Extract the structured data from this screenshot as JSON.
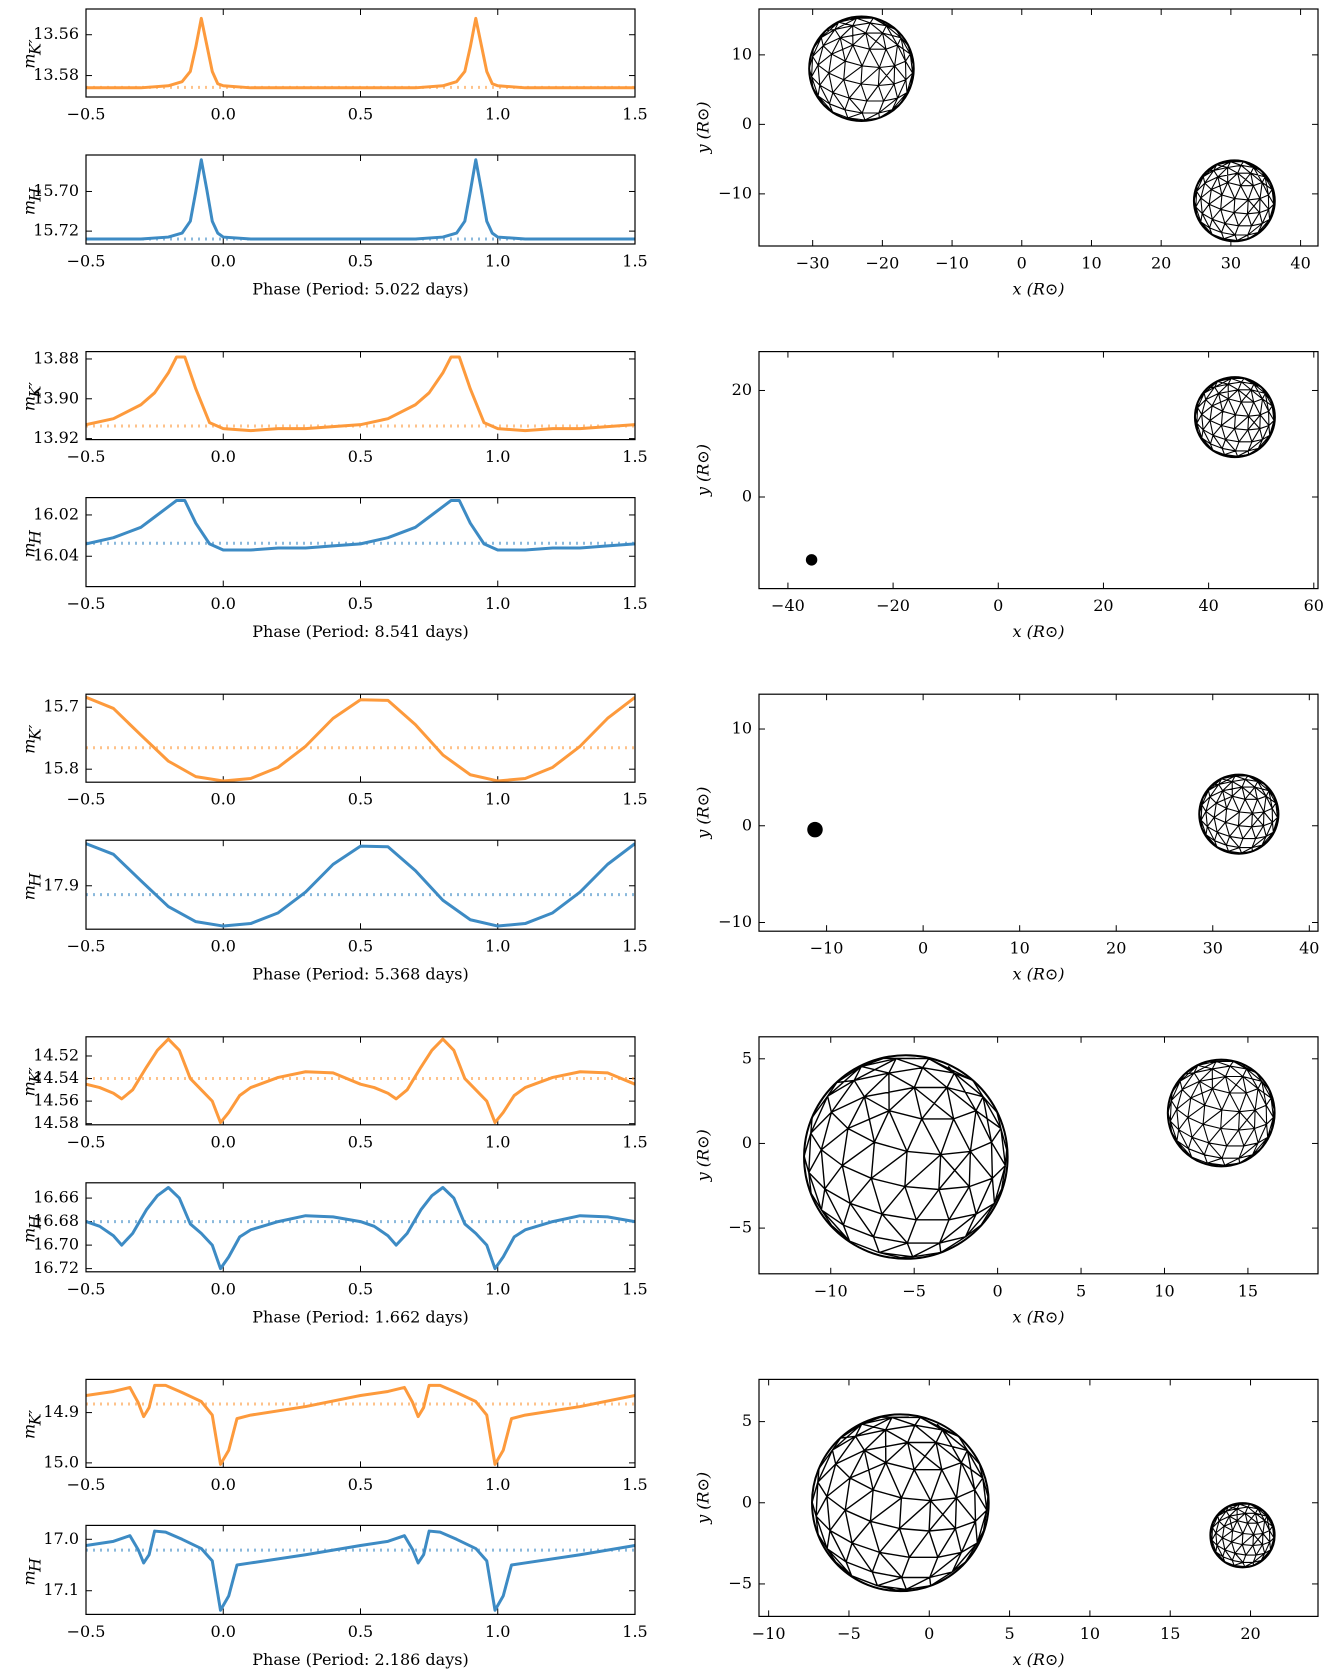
{
  "chart_data": [
    {
      "type": "line",
      "ylabel": "m",
      "ylabel_sub": "K′",
      "color": "#fd9a3c",
      "x": [
        -0.5,
        -0.3,
        -0.2,
        -0.15,
        -0.12,
        -0.1,
        -0.08,
        -0.06,
        -0.04,
        -0.02,
        0,
        0.1,
        0.3,
        0.5,
        0.7,
        0.8,
        0.85,
        0.88,
        0.9,
        0.92,
        0.94,
        0.96,
        0.98,
        1.0,
        1.1,
        1.3,
        1.5
      ],
      "values": [
        13.586,
        13.586,
        13.585,
        13.583,
        13.578,
        13.566,
        13.552,
        13.565,
        13.578,
        13.584,
        13.585,
        13.586,
        13.586,
        13.586,
        13.586,
        13.585,
        13.583,
        13.578,
        13.566,
        13.552,
        13.565,
        13.578,
        13.584,
        13.585,
        13.586,
        13.586,
        13.586
      ],
      "reference": 13.5858,
      "xlim": [
        -0.5,
        1.5
      ],
      "ylim": [
        13.5905,
        13.5474
      ],
      "xticks": [
        {
          "value": -0.5,
          "label": "−0.5"
        },
        {
          "value": 0,
          "label": "0.0"
        },
        0.5,
        {
          "value": 1,
          "label": "1.0"
        },
        1.5
      ],
      "yticks": [
        13.56,
        13.58
      ]
    },
    {
      "type": "line",
      "ylabel": "m",
      "ylabel_sub": "H",
      "color": "#3d8bc4",
      "xlabel": "Phase (Period: 5.022 days)",
      "x": [
        -0.5,
        -0.3,
        -0.2,
        -0.15,
        -0.12,
        -0.1,
        -0.08,
        -0.06,
        -0.04,
        -0.02,
        0,
        0.1,
        0.3,
        0.5,
        0.7,
        0.8,
        0.85,
        0.88,
        0.9,
        0.92,
        0.94,
        0.96,
        0.98,
        1.0,
        1.1,
        1.3,
        1.5
      ],
      "values": [
        15.724,
        15.724,
        15.723,
        15.721,
        15.715,
        15.7,
        15.684,
        15.699,
        15.715,
        15.721,
        15.723,
        15.724,
        15.724,
        15.724,
        15.724,
        15.723,
        15.721,
        15.715,
        15.7,
        15.684,
        15.699,
        15.715,
        15.721,
        15.723,
        15.724,
        15.724,
        15.724
      ],
      "reference": 15.724,
      "xlim": [
        -0.5,
        1.5
      ],
      "ylim": [
        15.7265,
        15.6816
      ],
      "xticks": [
        {
          "value": -0.5,
          "label": "−0.5"
        },
        {
          "value": 0,
          "label": "0.0"
        },
        0.5,
        {
          "value": 1,
          "label": "1.0"
        },
        1.5
      ],
      "yticks": [
        {
          "value": 15.7,
          "label": "15.70"
        },
        15.72
      ]
    },
    {
      "type": "bubble",
      "xlabel": "x (R⊙)",
      "ylabel": "y (R⊙)",
      "x": [
        -23,
        30.5
      ],
      "y": [
        8,
        -11
      ],
      "size": [
        7.5,
        5.8
      ],
      "xlim": [
        -37.7,
        42.5
      ],
      "ylim": [
        -17.5,
        16.6
      ],
      "xticks": [
        {
          "value": -30,
          "label": "−30"
        },
        {
          "value": -20,
          "label": "−20"
        },
        {
          "value": -10,
          "label": "−10"
        },
        0,
        10,
        20,
        30,
        40
      ],
      "yticks": [
        {
          "value": -10,
          "label": "−10"
        },
        0,
        10
      ]
    },
    {
      "type": "line",
      "ylabel": "m",
      "ylabel_sub": "K′",
      "color": "#fd9a3c",
      "x": [
        -0.5,
        -0.4,
        -0.3,
        -0.25,
        -0.2,
        -0.17,
        -0.14,
        -0.1,
        -0.05,
        0,
        0.1,
        0.2,
        0.3,
        0.4,
        0.5,
        0.6,
        0.7,
        0.75,
        0.8,
        0.83,
        0.86,
        0.9,
        0.95,
        1.0,
        1.1,
        1.2,
        1.3,
        1.4,
        1.5
      ],
      "values": [
        13.913,
        13.91,
        13.903,
        13.897,
        13.887,
        13.879,
        13.879,
        13.895,
        13.912,
        13.915,
        13.916,
        13.915,
        13.915,
        13.914,
        13.913,
        13.91,
        13.903,
        13.897,
        13.887,
        13.879,
        13.879,
        13.895,
        13.912,
        13.915,
        13.916,
        13.915,
        13.915,
        13.914,
        13.913
      ],
      "reference": 13.9137,
      "xlim": [
        -0.5,
        1.5
      ],
      "ylim": [
        13.9205,
        13.8763
      ],
      "xticks": [
        {
          "value": -0.5,
          "label": "−0.5"
        },
        {
          "value": 0,
          "label": "0.0"
        },
        0.5,
        {
          "value": 1,
          "label": "1.0"
        },
        1.5
      ],
      "yticks": [
        13.88,
        {
          "value": 13.9,
          "label": "13.90"
        },
        13.92
      ]
    },
    {
      "type": "line",
      "ylabel": "m",
      "ylabel_sub": "H",
      "color": "#3d8bc4",
      "xlabel": "Phase (Period: 8.541 days)",
      "x": [
        -0.5,
        -0.4,
        -0.3,
        -0.25,
        -0.2,
        -0.17,
        -0.14,
        -0.1,
        -0.05,
        0,
        0.1,
        0.2,
        0.3,
        0.4,
        0.5,
        0.6,
        0.7,
        0.75,
        0.8,
        0.83,
        0.86,
        0.9,
        0.95,
        1.0,
        1.1,
        1.2,
        1.3,
        1.4,
        1.5
      ],
      "values": [
        16.034,
        16.031,
        16.026,
        16.021,
        16.016,
        16.013,
        16.013,
        16.024,
        16.034,
        16.037,
        16.037,
        16.036,
        16.036,
        16.035,
        16.034,
        16.031,
        16.026,
        16.021,
        16.016,
        16.013,
        16.013,
        16.024,
        16.034,
        16.037,
        16.037,
        16.036,
        16.036,
        16.035,
        16.034
      ],
      "reference": 16.0337,
      "xlim": [
        -0.5,
        1.5
      ],
      "ylim": [
        16.0547,
        16.0116
      ],
      "xticks": [
        {
          "value": -0.5,
          "label": "−0.5"
        },
        {
          "value": 0,
          "label": "0.0"
        },
        0.5,
        {
          "value": 1,
          "label": "1.0"
        },
        1.5
      ],
      "yticks": [
        16.02,
        16.04
      ]
    },
    {
      "type": "bubble",
      "xlabel": "x (R⊙)",
      "ylabel": "y (R⊙)",
      "x": [
        -35.5,
        45
      ],
      "y": [
        -11.8,
        15
      ],
      "size": [
        0.9,
        7.6
      ],
      "xlim": [
        -45.5,
        60.8
      ],
      "ylim": [
        -17.2,
        27.3
      ],
      "xticks": [
        {
          "value": -40,
          "label": "−40"
        },
        {
          "value": -20,
          "label": "−20"
        },
        0,
        20,
        40,
        60
      ],
      "yticks": [
        0,
        20
      ]
    },
    {
      "type": "line",
      "ylabel": "m",
      "ylabel_sub": "K′",
      "color": "#fd9a3c",
      "x": [
        -0.5,
        -0.4,
        -0.3,
        -0.2,
        -0.1,
        0,
        0.1,
        0.2,
        0.3,
        0.4,
        0.5,
        0.6,
        0.7,
        0.8,
        0.9,
        1.0,
        1.1,
        1.2,
        1.3,
        1.4,
        1.5
      ],
      "values": [
        15.684,
        15.702,
        15.745,
        15.787,
        15.812,
        15.819,
        15.815,
        15.797,
        15.763,
        15.718,
        15.688,
        15.689,
        15.728,
        15.777,
        15.809,
        15.819,
        15.815,
        15.797,
        15.763,
        15.718,
        15.684
      ],
      "reference": 15.7655,
      "xlim": [
        -0.5,
        1.5
      ],
      "ylim": [
        15.821,
        15.679
      ],
      "xticks": [
        {
          "value": -0.5,
          "label": "−0.5"
        },
        {
          "value": 0,
          "label": "0.0"
        },
        0.5,
        {
          "value": 1,
          "label": "1.0"
        },
        1.5
      ],
      "yticks": [
        15.7,
        15.8
      ]
    },
    {
      "type": "line",
      "ylabel": "m",
      "ylabel_sub": "H",
      "color": "#3d8bc4",
      "xlabel": "Phase (Period: 5.368 days)",
      "x": [
        -0.5,
        -0.4,
        -0.3,
        -0.2,
        -0.1,
        0,
        0.1,
        0.2,
        0.3,
        0.4,
        0.5,
        0.6,
        0.7,
        0.8,
        0.9,
        1.0,
        1.1,
        1.2,
        1.3,
        1.4,
        1.5
      ],
      "values": [
        17.833,
        17.85,
        17.892,
        17.933,
        17.957,
        17.964,
        17.96,
        17.943,
        17.91,
        17.866,
        17.837,
        17.838,
        17.876,
        17.923,
        17.954,
        17.964,
        17.96,
        17.943,
        17.91,
        17.866,
        17.833
      ],
      "reference": 17.914,
      "xlim": [
        -0.5,
        1.5
      ],
      "ylim": [
        17.969,
        17.8276
      ],
      "xticks": [
        {
          "value": -0.5,
          "label": "−0.5"
        },
        {
          "value": 0,
          "label": "0.0"
        },
        0.5,
        {
          "value": 1,
          "label": "1.0"
        },
        1.5
      ],
      "yticks": [
        17.9
      ]
    },
    {
      "type": "bubble",
      "xlabel": "x (R⊙)",
      "ylabel": "y (R⊙)",
      "x": [
        -11.2,
        32.7
      ],
      "y": [
        -0.4,
        1.2
      ],
      "size": [
        0.7,
        4.1
      ],
      "xlim": [
        -17,
        40.9
      ],
      "ylim": [
        -10.9,
        13.6
      ],
      "xticks": [
        {
          "value": -10,
          "label": "−10"
        },
        0,
        10,
        20,
        30,
        40
      ],
      "yticks": [
        {
          "value": -10,
          "label": "−10"
        },
        0,
        10
      ]
    },
    {
      "type": "line",
      "ylabel": "m",
      "ylabel_sub": "K′",
      "color": "#fd9a3c",
      "x": [
        -0.5,
        -0.45,
        -0.4,
        -0.37,
        -0.33,
        -0.28,
        -0.24,
        -0.2,
        -0.16,
        -0.12,
        -0.08,
        -0.04,
        -0.01,
        0.02,
        0.06,
        0.1,
        0.2,
        0.3,
        0.4,
        0.5,
        0.55,
        0.6,
        0.63,
        0.67,
        0.72,
        0.76,
        0.8,
        0.84,
        0.88,
        0.92,
        0.96,
        0.99,
        1.02,
        1.06,
        1.1,
        1.2,
        1.3,
        1.4,
        1.5
      ],
      "values": [
        14.545,
        14.548,
        14.553,
        14.558,
        14.55,
        14.53,
        14.515,
        14.505,
        14.515,
        14.54,
        14.55,
        14.56,
        14.579,
        14.57,
        14.555,
        14.548,
        14.539,
        14.534,
        14.535,
        14.545,
        14.548,
        14.553,
        14.558,
        14.55,
        14.53,
        14.515,
        14.505,
        14.515,
        14.54,
        14.55,
        14.56,
        14.579,
        14.57,
        14.555,
        14.548,
        14.539,
        14.534,
        14.535,
        14.545
      ],
      "reference": 14.54,
      "xlim": [
        -0.5,
        1.5
      ],
      "ylim": [
        14.581,
        14.503
      ],
      "xticks": [
        {
          "value": -0.5,
          "label": "−0.5"
        },
        {
          "value": 0,
          "label": "0.0"
        },
        0.5,
        {
          "value": 1,
          "label": "1.0"
        },
        1.5
      ],
      "yticks": [
        14.52,
        14.54,
        14.56,
        14.58
      ]
    },
    {
      "type": "line",
      "ylabel": "m",
      "ylabel_sub": "H",
      "color": "#3d8bc4",
      "xlabel": "Phase (Period: 1.662 days)",
      "x": [
        -0.5,
        -0.45,
        -0.4,
        -0.37,
        -0.33,
        -0.28,
        -0.24,
        -0.2,
        -0.16,
        -0.12,
        -0.08,
        -0.04,
        -0.01,
        0.02,
        0.06,
        0.1,
        0.2,
        0.3,
        0.4,
        0.5,
        0.55,
        0.6,
        0.63,
        0.67,
        0.72,
        0.76,
        0.8,
        0.84,
        0.88,
        0.92,
        0.96,
        0.99,
        1.02,
        1.06,
        1.1,
        1.2,
        1.3,
        1.4,
        1.5
      ],
      "values": [
        16.68,
        16.684,
        16.692,
        16.7,
        16.69,
        16.67,
        16.658,
        16.651,
        16.66,
        16.682,
        16.69,
        16.7,
        16.72,
        16.71,
        16.693,
        16.687,
        16.68,
        16.675,
        16.676,
        16.68,
        16.684,
        16.692,
        16.7,
        16.69,
        16.67,
        16.658,
        16.651,
        16.66,
        16.682,
        16.69,
        16.7,
        16.72,
        16.71,
        16.693,
        16.687,
        16.68,
        16.675,
        16.676,
        16.68
      ],
      "reference": 16.68,
      "xlim": [
        -0.5,
        1.5
      ],
      "ylim": [
        16.7227,
        16.647
      ],
      "xticks": [
        {
          "value": -0.5,
          "label": "−0.5"
        },
        {
          "value": 0,
          "label": "0.0"
        },
        0.5,
        {
          "value": 1,
          "label": "1.0"
        },
        1.5
      ],
      "yticks": [
        16.66,
        16.68,
        {
          "value": 16.7,
          "label": "16.70"
        },
        16.72
      ]
    },
    {
      "type": "bubble",
      "xlabel": "x (R⊙)",
      "ylabel": "y (R⊙)",
      "x": [
        -5.5,
        13.4
      ],
      "y": [
        -0.8,
        1.8
      ],
      "size": [
        6.1,
        3.2
      ],
      "xlim": [
        -14.3,
        19.2
      ],
      "ylim": [
        -7.7,
        6.3
      ],
      "xticks": [
        {
          "value": -10,
          "label": "−10"
        },
        {
          "value": -5,
          "label": "−5"
        },
        0,
        5,
        10,
        15
      ],
      "yticks": [
        {
          "value": -5,
          "label": "−5"
        },
        0,
        5
      ]
    },
    {
      "type": "line",
      "ylabel": "m",
      "ylabel_sub": "K′",
      "color": "#fd9a3c",
      "x": [
        -0.5,
        -0.4,
        -0.34,
        -0.31,
        -0.29,
        -0.27,
        -0.25,
        -0.21,
        -0.15,
        -0.08,
        -0.04,
        -0.01,
        0.02,
        0.05,
        0.1,
        0.3,
        0.5,
        0.6,
        0.66,
        0.69,
        0.71,
        0.73,
        0.75,
        0.79,
        0.85,
        0.92,
        0.96,
        0.99,
        1.02,
        1.05,
        1.1,
        1.3,
        1.5
      ],
      "values": [
        14.866,
        14.858,
        14.85,
        14.88,
        14.908,
        14.89,
        14.846,
        14.846,
        14.86,
        14.878,
        14.905,
        15.003,
        14.975,
        14.912,
        14.905,
        14.888,
        14.866,
        14.858,
        14.85,
        14.88,
        14.908,
        14.89,
        14.846,
        14.846,
        14.86,
        14.878,
        14.905,
        15.003,
        14.975,
        14.912,
        14.905,
        14.888,
        14.866
      ],
      "reference": 14.883,
      "xlim": [
        -0.5,
        1.5
      ],
      "ylim": [
        15.009,
        14.834
      ],
      "xticks": [
        {
          "value": -0.5,
          "label": "−0.5"
        },
        {
          "value": 0,
          "label": "0.0"
        },
        0.5,
        {
          "value": 1,
          "label": "1.0"
        },
        1.5
      ],
      "yticks": [
        14.9,
        {
          "value": 15,
          "label": "15.0"
        }
      ]
    },
    {
      "type": "line",
      "ylabel": "m",
      "ylabel_sub": "H",
      "color": "#3d8bc4",
      "xlabel": "Phase (Period: 2.186 days)",
      "x": [
        -0.5,
        -0.4,
        -0.34,
        -0.31,
        -0.29,
        -0.27,
        -0.25,
        -0.21,
        -0.15,
        -0.08,
        -0.04,
        -0.01,
        0.02,
        0.05,
        0.1,
        0.3,
        0.5,
        0.6,
        0.66,
        0.69,
        0.71,
        0.73,
        0.75,
        0.79,
        0.85,
        0.92,
        0.96,
        0.99,
        1.02,
        1.05,
        1.1,
        1.3,
        1.5
      ],
      "values": [
        17.012,
        17.004,
        16.993,
        17.02,
        17.046,
        17.03,
        16.984,
        16.986,
        17.0,
        17.018,
        17.042,
        17.138,
        17.11,
        17.05,
        17.046,
        17.03,
        17.012,
        17.004,
        16.993,
        17.02,
        17.046,
        17.03,
        16.984,
        16.986,
        17.0,
        17.018,
        17.042,
        17.138,
        17.11,
        17.05,
        17.046,
        17.03,
        17.012
      ],
      "reference": 17.021,
      "xlim": [
        -0.5,
        1.5
      ],
      "ylim": [
        17.146,
        16.973
      ],
      "xticks": [
        {
          "value": -0.5,
          "label": "−0.5"
        },
        {
          "value": 0,
          "label": "0.0"
        },
        0.5,
        {
          "value": 1,
          "label": "1.0"
        },
        1.5
      ],
      "yticks": [
        {
          "value": 17,
          "label": "17.0"
        },
        17.1
      ]
    },
    {
      "type": "bubble",
      "xlabel": "x (R⊙)",
      "ylabel": "y (R⊙)",
      "x": [
        -1.8,
        19.5
      ],
      "y": [
        0,
        -2
      ],
      "size": [
        5.5,
        2.0
      ],
      "xlim": [
        -10.6,
        24.2
      ],
      "ylim": [
        -7.0,
        7.6
      ],
      "xticks": [
        {
          "value": -10,
          "label": "−10"
        },
        {
          "value": -5,
          "label": "−5"
        },
        0,
        5,
        10,
        15,
        20
      ],
      "yticks": [
        {
          "value": -5,
          "label": "−5"
        },
        0,
        5
      ]
    }
  ]
}
